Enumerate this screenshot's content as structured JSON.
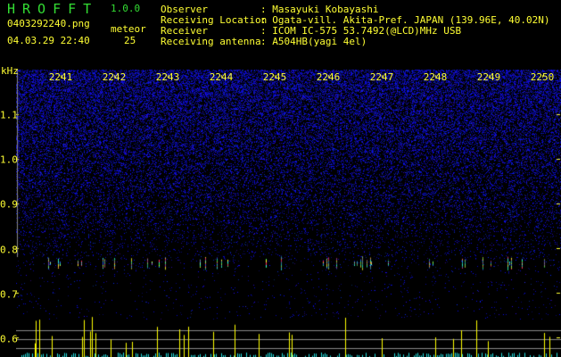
{
  "app": {
    "title": "HROFFT",
    "version": "1.0.0"
  },
  "file": {
    "name": "0403292240.png",
    "datetime": "04.03.29 22:40"
  },
  "meteor": {
    "label": "meteor",
    "count": "25"
  },
  "info": [
    {
      "key": "Observer",
      "value": ": Masayuki Kobayashi"
    },
    {
      "key": "Receiving Location",
      "value": ": Ogata-vill. Akita-Pref. JAPAN (139.96E, 40.02N)"
    },
    {
      "key": "Receiver",
      "value": ": ICOM IC-575 53.7492(@LCD)MHz USB"
    },
    {
      "key": "Receiving antenna",
      "value": ": A504HB(yagi 4el)"
    }
  ],
  "axis": {
    "y_unit": "kHz",
    "y_ticks": [
      "1.1",
      "1.0",
      "0.9",
      "0.8",
      "0.7",
      "0.6"
    ],
    "x_ticks": [
      "2241",
      "2242",
      "2243",
      "2244",
      "2245",
      "2246",
      "2247",
      "2248",
      "2249",
      "2250"
    ]
  },
  "colors": {
    "text": "#ffff33",
    "title": "#33dd33",
    "noise": "#1a1aa0",
    "histogram_low": "#22dddd",
    "histogram_high": "#ffff00",
    "gridline": "#888888"
  }
}
